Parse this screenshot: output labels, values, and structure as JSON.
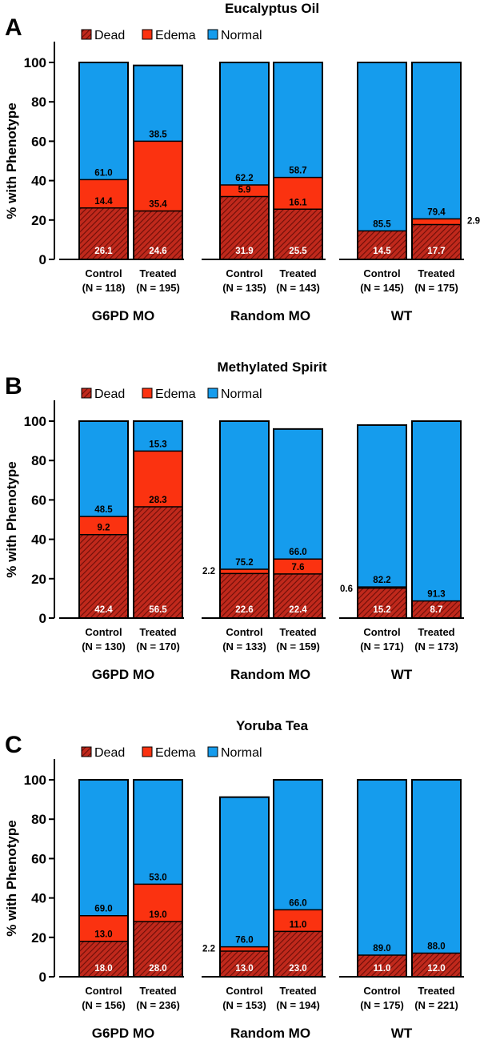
{
  "colors": {
    "dead": "#c0291c",
    "dead_hatch": "#6d0e08",
    "edema": "#fb3210",
    "normal": "#159ced"
  },
  "chart_data": [
    {
      "panel": "A",
      "type": "bar",
      "stacked": true,
      "title": "Eucalyptus Oil",
      "ylabel": "% with Phenotype",
      "ylim": [
        0,
        100
      ],
      "yticks": [
        0,
        20,
        40,
        60,
        80,
        100
      ],
      "legend": [
        "Dead",
        "Edema",
        "Normal"
      ],
      "groups": [
        "G6PD MO",
        "Random MO",
        "WT"
      ],
      "categories": [
        [
          "Control",
          "(N = 118)"
        ],
        [
          "Treated",
          "(N = 195)"
        ],
        [
          "Control",
          "(N = 135)"
        ],
        [
          "Treated",
          "(N = 143)"
        ],
        [
          "Control",
          "(N = 145)"
        ],
        [
          "Treated",
          "(N = 175)"
        ]
      ],
      "series": [
        {
          "name": "Dead",
          "values": [
            26.1,
            24.6,
            31.9,
            25.5,
            14.5,
            17.7
          ]
        },
        {
          "name": "Edema",
          "values": [
            14.4,
            35.4,
            5.9,
            16.1,
            0,
            2.9
          ]
        },
        {
          "name": "Normal",
          "values": [
            61.0,
            38.5,
            62.2,
            58.7,
            85.5,
            79.4
          ]
        }
      ]
    },
    {
      "panel": "B",
      "type": "bar",
      "stacked": true,
      "title": "Methylated Spirit",
      "ylabel": "% with Phenotype",
      "ylim": [
        0,
        100
      ],
      "yticks": [
        0,
        20,
        40,
        60,
        80,
        100
      ],
      "legend": [
        "Dead",
        "Edema",
        "Normal"
      ],
      "groups": [
        "G6PD MO",
        "Random MO",
        "WT"
      ],
      "categories": [
        [
          "Control",
          "(N = 130)"
        ],
        [
          "Treated",
          "(N = 170)"
        ],
        [
          "Control",
          "(N = 133)"
        ],
        [
          "Treated",
          "(N = 159)"
        ],
        [
          "Control",
          "(N = 171)"
        ],
        [
          "Treated",
          "(N = 173)"
        ]
      ],
      "series": [
        {
          "name": "Dead",
          "values": [
            42.4,
            56.5,
            22.6,
            22.4,
            15.2,
            8.7
          ]
        },
        {
          "name": "Edema",
          "values": [
            9.2,
            28.3,
            2.2,
            7.6,
            0.6,
            0
          ]
        },
        {
          "name": "Normal",
          "values": [
            48.5,
            15.3,
            75.2,
            66.0,
            82.2,
            91.3
          ]
        }
      ]
    },
    {
      "panel": "C",
      "type": "bar",
      "stacked": true,
      "title": "Yoruba Tea",
      "ylabel": "% with Phenotype",
      "ylim": [
        0,
        100
      ],
      "yticks": [
        0,
        20,
        40,
        60,
        80,
        100
      ],
      "legend": [
        "Dead",
        "Edema",
        "Normal"
      ],
      "groups": [
        "G6PD MO",
        "Random MO",
        "WT"
      ],
      "categories": [
        [
          "Control",
          "(N = 156)"
        ],
        [
          "Treated",
          "(N = 236)"
        ],
        [
          "Control",
          "(N = 153)"
        ],
        [
          "Treated",
          "(N = 194)"
        ],
        [
          "Control",
          "(N = 175)"
        ],
        [
          "Treated",
          "(N = 221)"
        ]
      ],
      "series": [
        {
          "name": "Dead",
          "values": [
            18.0,
            28.0,
            13.0,
            23.0,
            11.0,
            12.0
          ]
        },
        {
          "name": "Edema",
          "values": [
            13.0,
            19.0,
            2.2,
            11.0,
            0,
            0
          ]
        },
        {
          "name": "Normal",
          "values": [
            69.0,
            53.0,
            76.0,
            66.0,
            89.0,
            88.0
          ]
        }
      ]
    }
  ]
}
